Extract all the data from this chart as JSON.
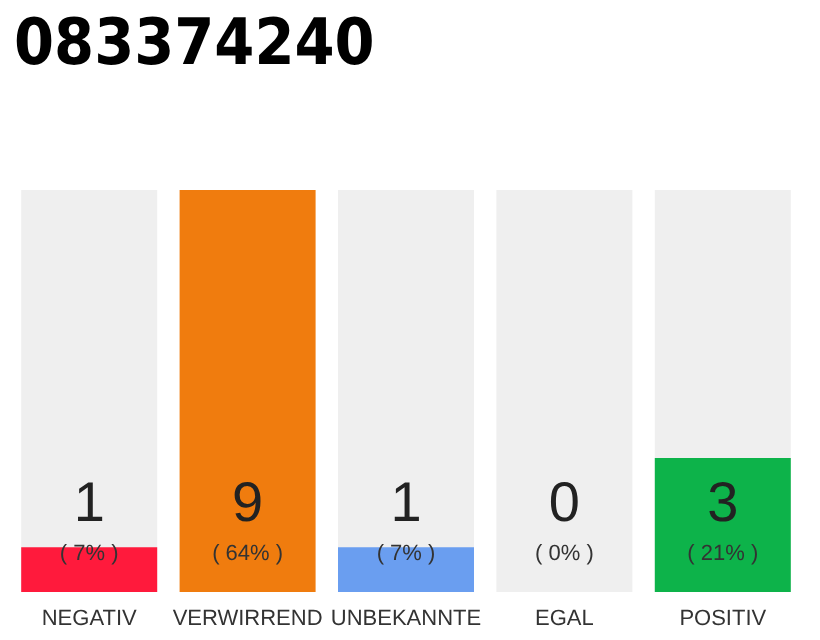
{
  "chart_data": {
    "type": "bar",
    "title": "083374240",
    "categories": [
      "NEGATIV",
      "VERWIRREND",
      "UNBEKANNTE",
      "EGAL",
      "POSITIV"
    ],
    "values": [
      1,
      9,
      1,
      0,
      3
    ],
    "colors": [
      "#ff1a3c",
      "#f07c0e",
      "#6a9ef0",
      "#8cc870",
      "#0db34a"
    ],
    "ylim": [
      0,
      9
    ],
    "tick_labels": "x",
    "data_labels": true,
    "bands": [
      {
        "axis": "x",
        "from": "NEGATIV",
        "to": "NEGATIV",
        "color": "#efefef"
      },
      {
        "axis": "x",
        "from": "UNBEKANNTE",
        "to": "UNBEKANNTE",
        "color": "#efefef"
      },
      {
        "axis": "x",
        "from": "EGAL",
        "to": "EGAL",
        "color": "#efefef"
      },
      {
        "axis": "x",
        "from": "POSITIV",
        "to": "POSITIV",
        "color": "#efefef"
      }
    ],
    "annotations": [
      "( 7% )",
      "( 64% )",
      "( 7% )",
      "( 0% )",
      "( 21% )"
    ]
  }
}
